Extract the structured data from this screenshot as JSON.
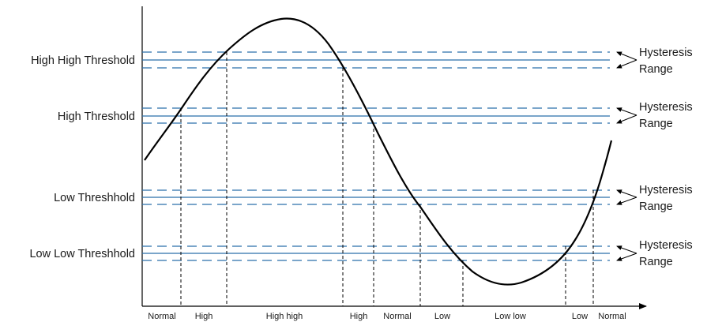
{
  "diagram": {
    "thresholds": [
      {
        "label": "High High Threshold"
      },
      {
        "label": "High Threshold"
      },
      {
        "label": "Low Threshhold"
      },
      {
        "label": "Low Low Threshhold"
      }
    ],
    "hysteresis": [
      {
        "line1": "Hysteresis",
        "line2": "Range"
      },
      {
        "line1": "Hysteresis",
        "line2": "Range"
      },
      {
        "line1": "Hysteresis",
        "line2": "Range"
      },
      {
        "line1": "Hysteresis",
        "line2": "Range"
      }
    ],
    "regions": [
      {
        "label": "Normal"
      },
      {
        "label": "High"
      },
      {
        "label": "High high"
      },
      {
        "label": "High"
      },
      {
        "label": "Normal"
      },
      {
        "label": "Low"
      },
      {
        "label": "Low low"
      },
      {
        "label": "Low"
      },
      {
        "label": "Normal"
      }
    ],
    "colors": {
      "threshold_line": "#2a6faa",
      "curve": "#000000",
      "axis": "#000000"
    }
  }
}
